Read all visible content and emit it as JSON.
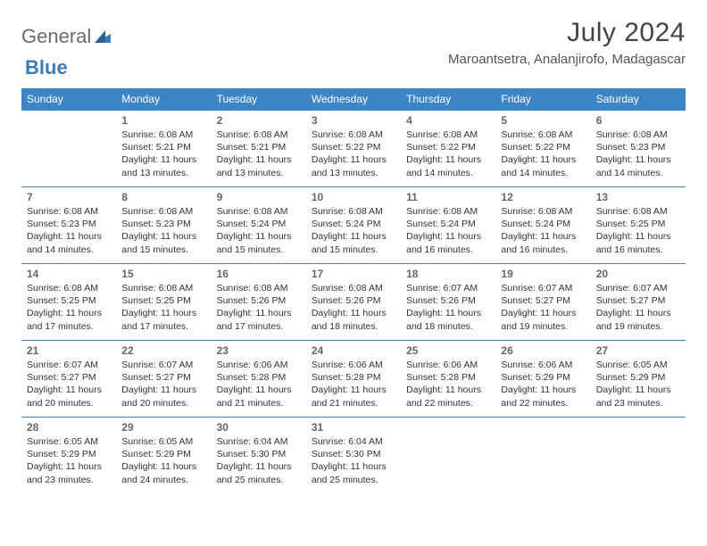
{
  "logo": {
    "text_general": "General",
    "text_blue": "Blue"
  },
  "title": "July 2024",
  "location": "Maroantsetra, Analanjirofo, Madagascar",
  "colors": {
    "header_bg": "#3d85c6",
    "header_fg": "#ffffff",
    "rule": "#3d85c6",
    "text": "#333333",
    "daynum": "#666666",
    "logo_blue": "#3d7bb8"
  },
  "weekdays": [
    "Sunday",
    "Monday",
    "Tuesday",
    "Wednesday",
    "Thursday",
    "Friday",
    "Saturday"
  ],
  "weeks": [
    [
      null,
      {
        "n": "1",
        "sr": "6:08 AM",
        "ss": "5:21 PM",
        "dl": "11 hours and 13 minutes."
      },
      {
        "n": "2",
        "sr": "6:08 AM",
        "ss": "5:21 PM",
        "dl": "11 hours and 13 minutes."
      },
      {
        "n": "3",
        "sr": "6:08 AM",
        "ss": "5:22 PM",
        "dl": "11 hours and 13 minutes."
      },
      {
        "n": "4",
        "sr": "6:08 AM",
        "ss": "5:22 PM",
        "dl": "11 hours and 14 minutes."
      },
      {
        "n": "5",
        "sr": "6:08 AM",
        "ss": "5:22 PM",
        "dl": "11 hours and 14 minutes."
      },
      {
        "n": "6",
        "sr": "6:08 AM",
        "ss": "5:23 PM",
        "dl": "11 hours and 14 minutes."
      }
    ],
    [
      {
        "n": "7",
        "sr": "6:08 AM",
        "ss": "5:23 PM",
        "dl": "11 hours and 14 minutes."
      },
      {
        "n": "8",
        "sr": "6:08 AM",
        "ss": "5:23 PM",
        "dl": "11 hours and 15 minutes."
      },
      {
        "n": "9",
        "sr": "6:08 AM",
        "ss": "5:24 PM",
        "dl": "11 hours and 15 minutes."
      },
      {
        "n": "10",
        "sr": "6:08 AM",
        "ss": "5:24 PM",
        "dl": "11 hours and 15 minutes."
      },
      {
        "n": "11",
        "sr": "6:08 AM",
        "ss": "5:24 PM",
        "dl": "11 hours and 16 minutes."
      },
      {
        "n": "12",
        "sr": "6:08 AM",
        "ss": "5:24 PM",
        "dl": "11 hours and 16 minutes."
      },
      {
        "n": "13",
        "sr": "6:08 AM",
        "ss": "5:25 PM",
        "dl": "11 hours and 16 minutes."
      }
    ],
    [
      {
        "n": "14",
        "sr": "6:08 AM",
        "ss": "5:25 PM",
        "dl": "11 hours and 17 minutes."
      },
      {
        "n": "15",
        "sr": "6:08 AM",
        "ss": "5:25 PM",
        "dl": "11 hours and 17 minutes."
      },
      {
        "n": "16",
        "sr": "6:08 AM",
        "ss": "5:26 PM",
        "dl": "11 hours and 17 minutes."
      },
      {
        "n": "17",
        "sr": "6:08 AM",
        "ss": "5:26 PM",
        "dl": "11 hours and 18 minutes."
      },
      {
        "n": "18",
        "sr": "6:07 AM",
        "ss": "5:26 PM",
        "dl": "11 hours and 18 minutes."
      },
      {
        "n": "19",
        "sr": "6:07 AM",
        "ss": "5:27 PM",
        "dl": "11 hours and 19 minutes."
      },
      {
        "n": "20",
        "sr": "6:07 AM",
        "ss": "5:27 PM",
        "dl": "11 hours and 19 minutes."
      }
    ],
    [
      {
        "n": "21",
        "sr": "6:07 AM",
        "ss": "5:27 PM",
        "dl": "11 hours and 20 minutes."
      },
      {
        "n": "22",
        "sr": "6:07 AM",
        "ss": "5:27 PM",
        "dl": "11 hours and 20 minutes."
      },
      {
        "n": "23",
        "sr": "6:06 AM",
        "ss": "5:28 PM",
        "dl": "11 hours and 21 minutes."
      },
      {
        "n": "24",
        "sr": "6:06 AM",
        "ss": "5:28 PM",
        "dl": "11 hours and 21 minutes."
      },
      {
        "n": "25",
        "sr": "6:06 AM",
        "ss": "5:28 PM",
        "dl": "11 hours and 22 minutes."
      },
      {
        "n": "26",
        "sr": "6:06 AM",
        "ss": "5:29 PM",
        "dl": "11 hours and 22 minutes."
      },
      {
        "n": "27",
        "sr": "6:05 AM",
        "ss": "5:29 PM",
        "dl": "11 hours and 23 minutes."
      }
    ],
    [
      {
        "n": "28",
        "sr": "6:05 AM",
        "ss": "5:29 PM",
        "dl": "11 hours and 23 minutes."
      },
      {
        "n": "29",
        "sr": "6:05 AM",
        "ss": "5:29 PM",
        "dl": "11 hours and 24 minutes."
      },
      {
        "n": "30",
        "sr": "6:04 AM",
        "ss": "5:30 PM",
        "dl": "11 hours and 25 minutes."
      },
      {
        "n": "31",
        "sr": "6:04 AM",
        "ss": "5:30 PM",
        "dl": "11 hours and 25 minutes."
      },
      null,
      null,
      null
    ]
  ],
  "labels": {
    "sunrise": "Sunrise:",
    "sunset": "Sunset:",
    "daylight": "Daylight:"
  }
}
